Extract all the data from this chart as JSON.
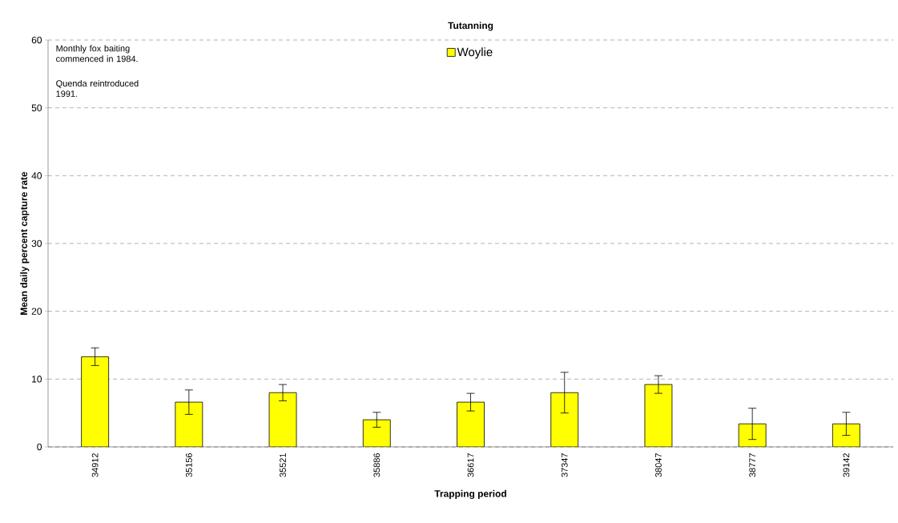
{
  "chart_data": {
    "type": "bar",
    "title": "Tutanning",
    "xlabel": "Trapping period",
    "ylabel": "Mean daily percent capture rate",
    "categories": [
      "34912",
      "35156",
      "35521",
      "35886",
      "36617",
      "37347",
      "38047",
      "38777",
      "39142"
    ],
    "series": [
      {
        "name": "Woylie",
        "color": "#ffff00",
        "values": [
          13.3,
          6.6,
          8.0,
          4.0,
          6.6,
          8.0,
          9.2,
          3.4,
          3.4
        ],
        "errors": [
          1.3,
          1.8,
          1.2,
          1.1,
          1.3,
          3.0,
          1.3,
          2.3,
          1.7
        ]
      }
    ],
    "ylim": [
      0,
      60
    ],
    "yticks": [
      0,
      10,
      20,
      30,
      40,
      50,
      60
    ],
    "grid": "y",
    "legend": "top",
    "annotations": [
      "Monthly fox baiting commenced in 1984.",
      "Quenda reintroduced 1991."
    ]
  }
}
